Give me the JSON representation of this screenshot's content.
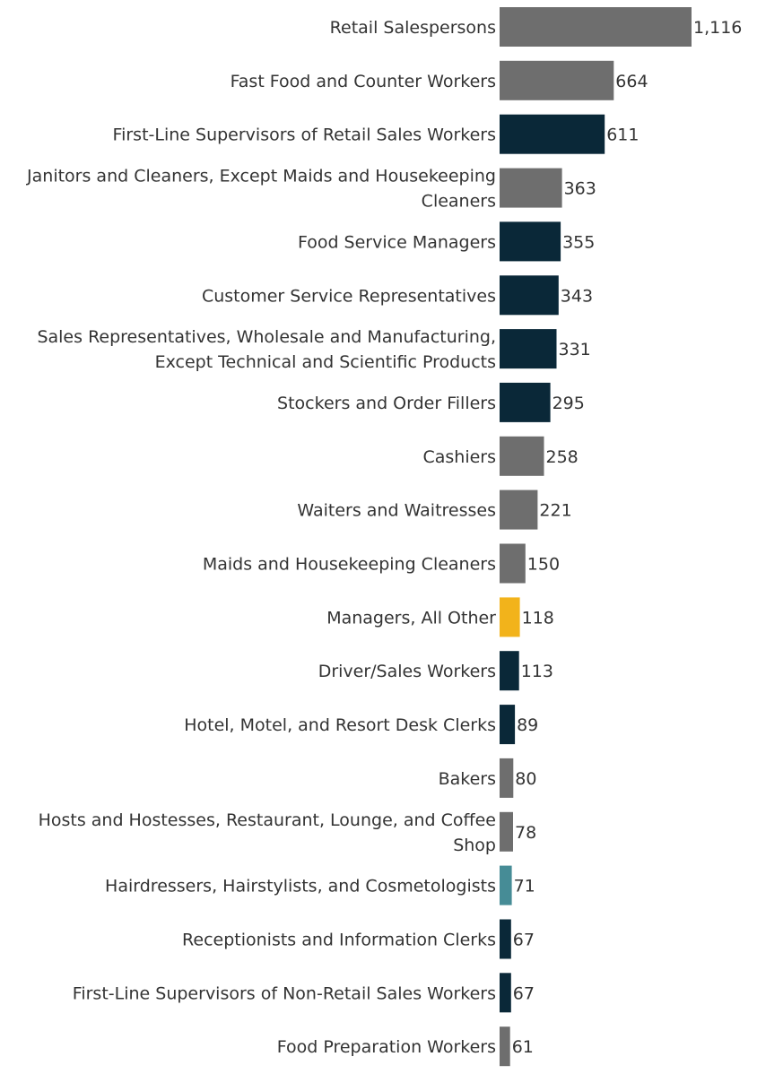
{
  "chart_data": {
    "type": "bar",
    "orientation": "horizontal",
    "title": "",
    "xlabel": "",
    "ylabel": "",
    "xlim": [
      0,
      1116
    ],
    "grid": false,
    "colors": {
      "gray": "#6e6e6e",
      "navy": "#0a2838",
      "gold": "#f2b31b",
      "teal": "#468c96"
    },
    "categories": [
      "Retail Salespersons",
      "Fast Food and Counter Workers",
      "First-Line Supervisors of Retail Sales Workers",
      "Janitors and Cleaners, Except Maids and Housekeeping Cleaners",
      "Food Service Managers",
      "Customer Service Representatives",
      "Sales Representatives, Wholesale and Manufacturing, Except Technical and Scientific Products",
      "Stockers and Order Fillers",
      "Cashiers",
      "Waiters and Waitresses",
      "Maids and Housekeeping Cleaners",
      "Managers, All Other",
      "Driver/Sales Workers",
      "Hotel, Motel, and Resort Desk Clerks",
      "Bakers",
      "Hosts and Hostesses, Restaurant, Lounge, and Coffee Shop",
      "Hairdressers, Hairstylists, and Cosmetologists",
      "Receptionists and Information Clerks",
      "First-Line Supervisors of Non-Retail Sales Workers",
      "Food Preparation Workers"
    ],
    "label_lines": [
      [
        "Retail Salespersons"
      ],
      [
        "Fast Food and Counter Workers"
      ],
      [
        "First-Line Supervisors of Retail Sales Workers"
      ],
      [
        "Janitors and Cleaners, Except Maids and Housekeeping",
        "Cleaners"
      ],
      [
        "Food Service Managers"
      ],
      [
        "Customer Service Representatives"
      ],
      [
        "Sales Representatives, Wholesale and Manufacturing,",
        "Except Technical and Scientific Products"
      ],
      [
        "Stockers and Order Fillers"
      ],
      [
        "Cashiers"
      ],
      [
        "Waiters and Waitresses"
      ],
      [
        "Maids and Housekeeping Cleaners"
      ],
      [
        "Managers, All Other"
      ],
      [
        "Driver/Sales Workers"
      ],
      [
        "Hotel, Motel, and Resort Desk Clerks"
      ],
      [
        "Bakers"
      ],
      [
        "Hosts and Hostesses, Restaurant, Lounge, and Coffee",
        "Shop"
      ],
      [
        "Hairdressers, Hairstylists, and Cosmetologists"
      ],
      [
        "Receptionists and Information Clerks"
      ],
      [
        "First-Line Supervisors of Non-Retail Sales Workers"
      ],
      [
        "Food Preparation Workers"
      ]
    ],
    "values": [
      1116,
      664,
      611,
      363,
      355,
      343,
      331,
      295,
      258,
      221,
      150,
      118,
      113,
      89,
      80,
      78,
      71,
      67,
      67,
      61
    ],
    "value_labels": [
      "1,116",
      "664",
      "611",
      "363",
      "355",
      "343",
      "331",
      "295",
      "258",
      "221",
      "150",
      "118",
      "113",
      "89",
      "80",
      "78",
      "71",
      "67",
      "67",
      "61"
    ],
    "bar_colors": [
      "gray",
      "gray",
      "navy",
      "gray",
      "navy",
      "navy",
      "navy",
      "navy",
      "gray",
      "gray",
      "gray",
      "gold",
      "navy",
      "navy",
      "gray",
      "gray",
      "teal",
      "navy",
      "navy",
      "gray"
    ]
  }
}
